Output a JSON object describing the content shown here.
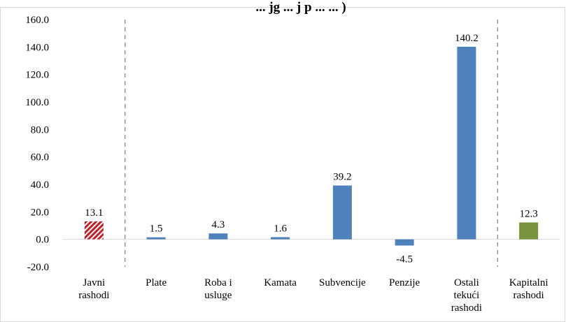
{
  "chart_data": {
    "type": "bar",
    "title": "... jg ... j p ... ... )",
    "categories": [
      [
        "Javni",
        "rashodi"
      ],
      [
        "Plate"
      ],
      [
        "Roba i",
        "usluge"
      ],
      [
        "Kamata"
      ],
      [
        "Subvencije"
      ],
      [
        "Penzije"
      ],
      [
        "Ostali",
        "tekući",
        "rashodi"
      ],
      [
        "Kapitalni",
        "rashodi"
      ]
    ],
    "values": [
      13.1,
      1.5,
      4.3,
      1.6,
      39.2,
      -4.5,
      140.2,
      12.3
    ],
    "value_labels": [
      "13.1",
      "1.5",
      "4.3",
      "1.6",
      "39.2",
      "-4.5",
      "140.2",
      "12.3"
    ],
    "bar_styles": [
      "hatched",
      "solid",
      "solid",
      "solid",
      "solid",
      "solid",
      "solid",
      "solid"
    ],
    "bar_colors": [
      "#c0202a",
      "#4f81bd",
      "#4f81bd",
      "#4f81bd",
      "#4f81bd",
      "#4f81bd",
      "#4f81bd",
      "#77933c"
    ],
    "ylim": [
      -20,
      160
    ],
    "yticks": [
      -20,
      0,
      20,
      40,
      60,
      80,
      100,
      120,
      140,
      160
    ],
    "ytick_labels": [
      "-20.0",
      "0.0",
      "20.0",
      "40.0",
      "60.0",
      "80.0",
      "100.0",
      "120.0",
      "140.0",
      "160.0"
    ],
    "separators_after_category": [
      0,
      6
    ],
    "xlabel": "",
    "ylabel": "",
    "grid": false,
    "legend": "none"
  }
}
